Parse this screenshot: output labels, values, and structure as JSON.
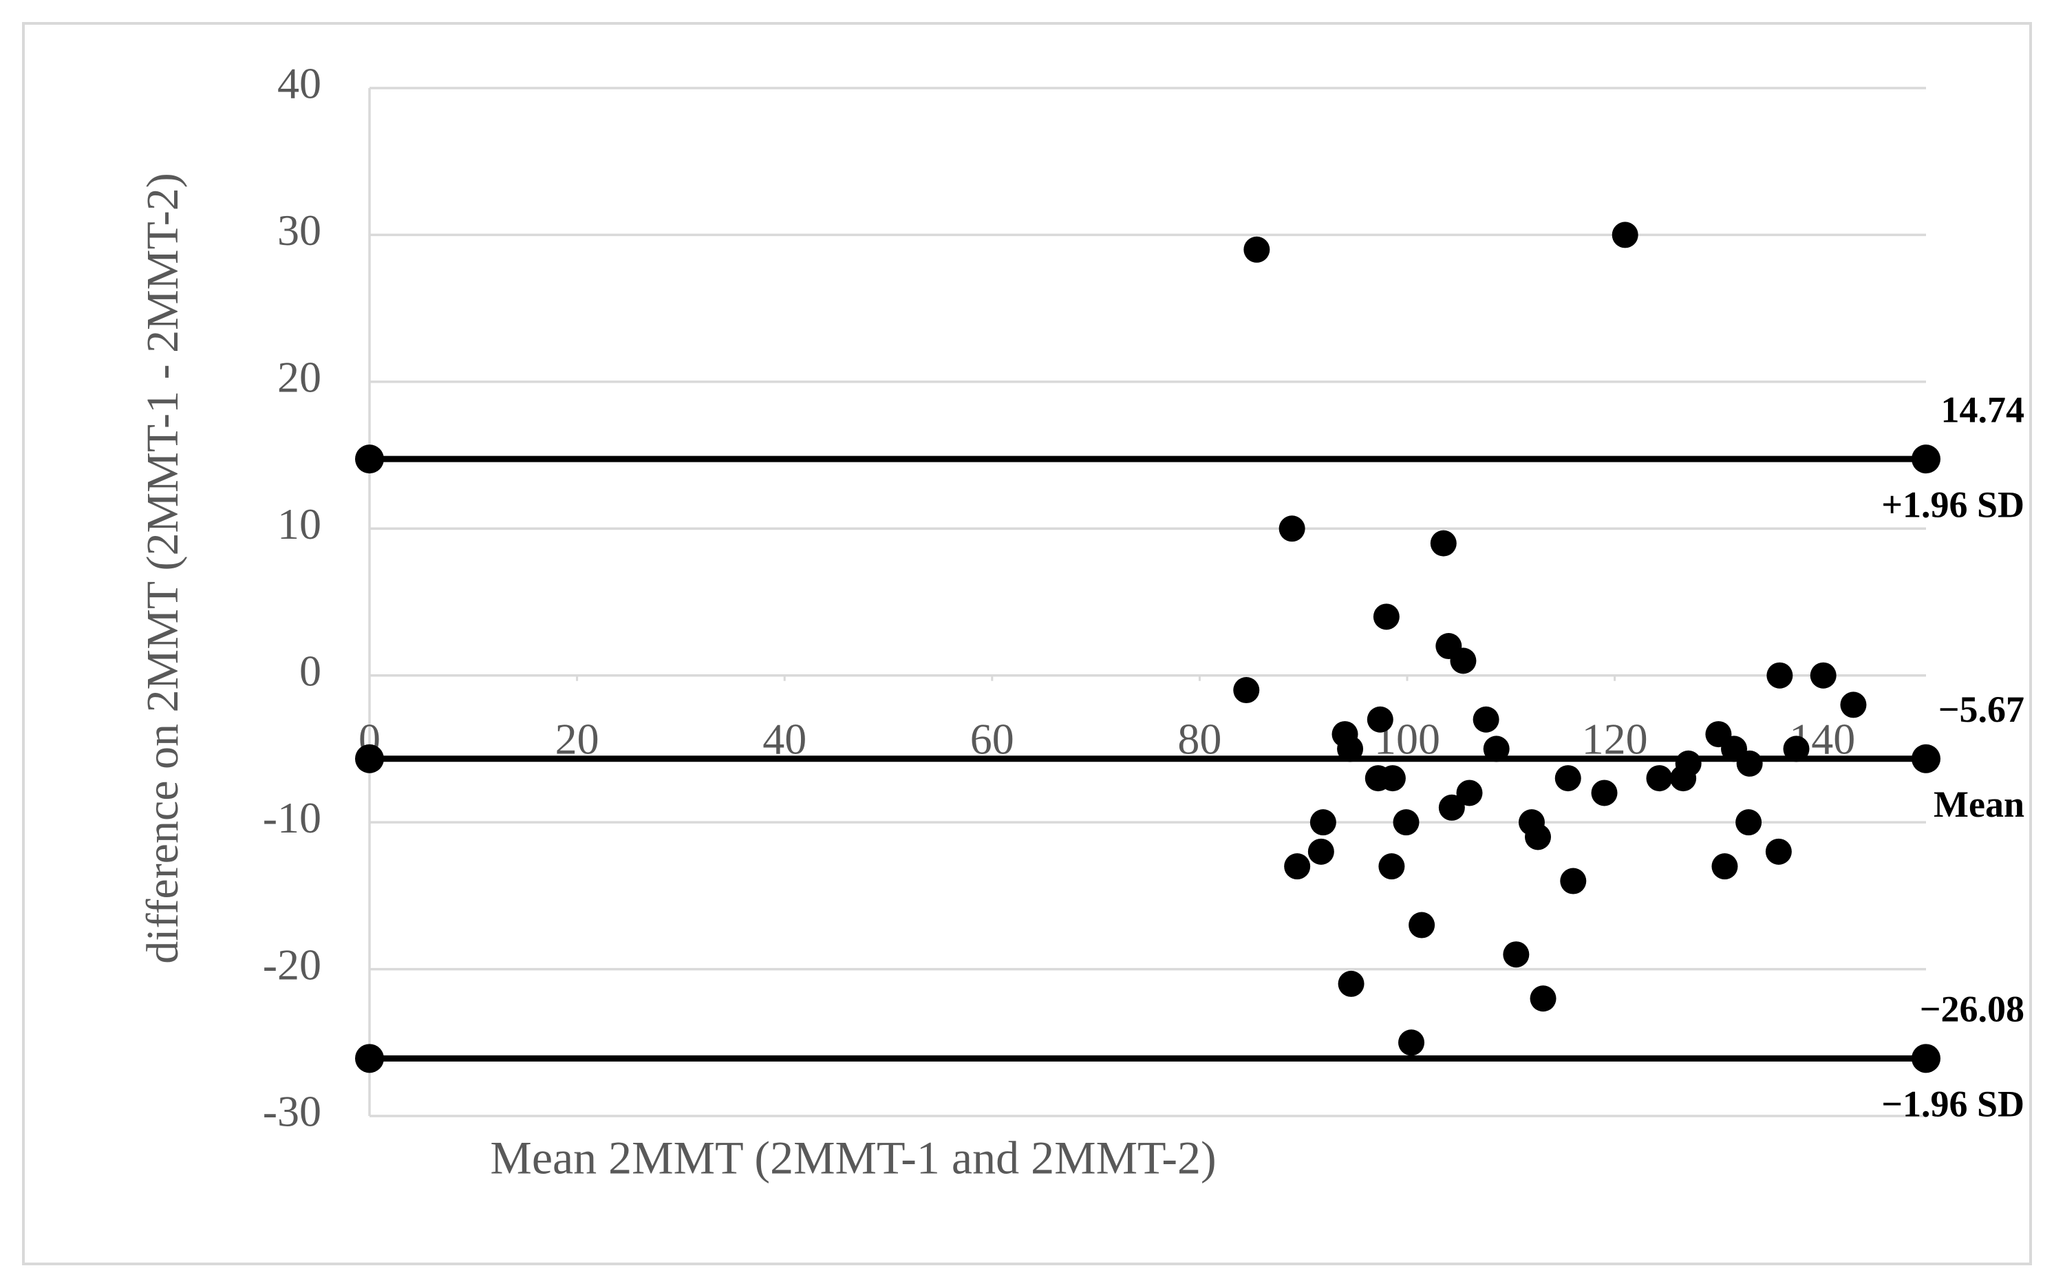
{
  "chart_data": {
    "type": "scatter",
    "xlabel": "Mean 2MMT (2MMT-1 and 2MMT-2)",
    "ylabel": "difference on 2MMT (2MMT-1 - 2MMT-2)",
    "xlim": [
      0,
      150
    ],
    "xticks": [
      0,
      20,
      40,
      60,
      80,
      100,
      120,
      140
    ],
    "ylim": [
      -30,
      40
    ],
    "yticks": [
      -30,
      -20,
      -10,
      0,
      10,
      20,
      30,
      40
    ],
    "grid": true,
    "color": "#000000",
    "x": [
      85.5,
      121,
      88.9,
      103.5,
      98,
      104,
      105.4,
      84.5,
      135.9,
      140.1,
      143,
      97.4,
      107.6,
      94,
      94.5,
      108.6,
      130,
      131.5,
      133,
      127.1,
      137.5,
      97.2,
      98.6,
      115.5,
      119,
      124.3,
      126.6,
      106,
      104.3,
      99.9,
      91.9,
      112,
      112.6,
      132.9,
      91.7,
      89.4,
      98.5,
      130.6,
      135.8,
      116,
      101.4,
      110.5,
      94.6,
      113.1,
      100.4
    ],
    "values": [
      29,
      30,
      10,
      9,
      4,
      2,
      1,
      -1,
      0,
      0,
      -2,
      -3,
      -3,
      -4,
      -5,
      -5,
      -4,
      -5,
      -6,
      -6,
      -5,
      -7,
      -7,
      -7,
      -8,
      -7,
      -7,
      -8,
      -9,
      -10,
      -10,
      -10,
      -11,
      -10,
      -12,
      -13,
      -13,
      -13,
      -12,
      -14,
      -17,
      -19,
      -21,
      -22,
      -25
    ],
    "reference_lines": [
      {
        "name": "+1.96 SD",
        "value": 14.74
      },
      {
        "name": "Mean",
        "value": -5.67,
        "value_label": "−5.67"
      },
      {
        "name": "−1.96 SD",
        "value": -26.08,
        "value_label": "−26.08"
      }
    ]
  }
}
